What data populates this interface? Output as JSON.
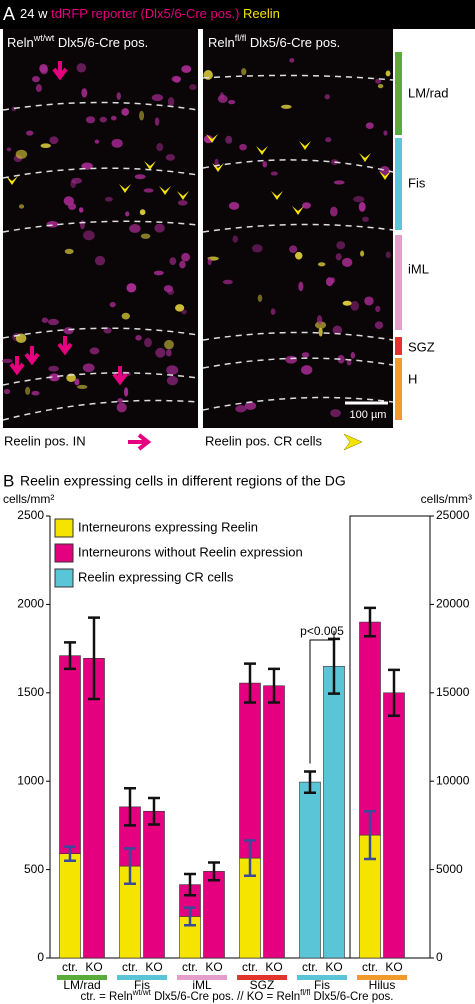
{
  "panel_a": {
    "label": "A",
    "age": "24 w",
    "reporter": "tdRFP reporter (Dlx5/6-Cre pos.)",
    "reelin": "Reelin",
    "left_title": {
      "gene": "Reln",
      "genotype": "wt/wt",
      "cre": "Dlx5/6-Cre pos."
    },
    "right_title": {
      "gene": "Reln",
      "genotype": "fl/fl",
      "cre": "Dlx5/6-Cre pos."
    },
    "regions": [
      "LM/rad",
      "Fis",
      "iML",
      "SGZ",
      "H"
    ],
    "scale_bar": "100 µm",
    "legend_in": "Reelin pos. IN",
    "legend_cr": "Reelin pos. CR cells"
  },
  "chart_data": {
    "type": "bar",
    "stacked": true,
    "panel_label": "B",
    "title": "Reelin expressing cells in different regions of the DG",
    "ylabel": "cells/mm²",
    "y2label": "cells/mm³",
    "ylim": [
      0,
      2500
    ],
    "yticks": [
      0,
      500,
      1000,
      1500,
      2000,
      2500
    ],
    "y2lim": [
      0,
      25000
    ],
    "y2ticks": [
      0,
      5000,
      10000,
      15000,
      20000,
      25000
    ],
    "categories": [
      "ctr.",
      "KO",
      "ctr.",
      "KO",
      "ctr.",
      "KO",
      "ctr.",
      "KO",
      "ctr.",
      "KO",
      "ctr.",
      "KO"
    ],
    "groups": [
      {
        "label": "LM/rad",
        "color": "#5aab3a"
      },
      {
        "label": "Fis",
        "color": "#5bc5d8"
      },
      {
        "label": "iML",
        "color": "#e39fc9"
      },
      {
        "label": "SGZ",
        "color": "#e2342c"
      },
      {
        "label": "Fis",
        "color": "#5bc5d8"
      },
      {
        "label": "Hilus",
        "color": "#f39a2c",
        "axis": "y2"
      }
    ],
    "series": [
      {
        "name": "Interneurons expressing Reelin",
        "color": "#f5e400",
        "error_color": "#3a4a9a",
        "values": [
          590,
          null,
          520,
          null,
          235,
          null,
          565,
          null,
          null,
          null,
          6950,
          null
        ],
        "errors": [
          40,
          null,
          100,
          null,
          50,
          null,
          100,
          null,
          null,
          null,
          1350,
          null
        ]
      },
      {
        "name": "Interneurons without Reelin expression",
        "color": "#e4007f",
        "error_color": "#111111",
        "values": [
          1120,
          1695,
          335,
          830,
          180,
          490,
          990,
          1540,
          null,
          null,
          12050,
          15000
        ],
        "errors": [
          75,
          230,
          105,
          75,
          60,
          50,
          110,
          95,
          null,
          null,
          800,
          1300
        ]
      },
      {
        "name": "Reelin expressing CR cells",
        "color": "#5bc5d8",
        "error_color": "#111111",
        "values": [
          null,
          null,
          null,
          null,
          null,
          null,
          null,
          null,
          995,
          1650,
          null,
          null
        ],
        "errors": [
          null,
          null,
          null,
          null,
          null,
          null,
          null,
          null,
          60,
          155,
          null,
          null
        ]
      }
    ],
    "annotation": "p<0.005",
    "footnote": [
      "ctr. = Reln",
      "wt/wt",
      " Dlx5/6-Cre pos. // KO = Reln",
      "fl/fl",
      " Dlx5/6-Cre pos."
    ]
  }
}
